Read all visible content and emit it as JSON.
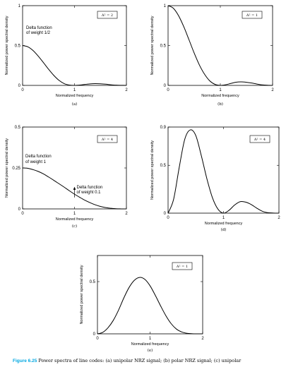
{
  "chart_data": [
    {
      "id": "a",
      "type": "line",
      "panel_label": "(a)",
      "xlabel": "Normalized frequency",
      "ylabel": "Normalized power spectral density",
      "xlim": [
        0,
        2
      ],
      "ylim": [
        0,
        1
      ],
      "xticks": [
        "0",
        "1",
        "2"
      ],
      "yticks": [
        "0",
        "0.5",
        "1"
      ],
      "ytick_values": [
        0,
        0.5,
        1
      ],
      "legend": "A² = 2",
      "annotations": [
        "Delta function",
        "of weight 1/2"
      ],
      "series": [
        {
          "x": [
            0,
            0.1,
            0.2,
            0.3,
            0.4,
            0.5,
            0.6,
            0.7,
            0.8,
            0.9,
            1.0,
            1.1,
            1.2,
            1.3,
            1.4,
            1.5,
            1.6,
            1.7,
            1.8,
            1.9,
            2.0
          ],
          "y": [
            0.5,
            0.484,
            0.438,
            0.368,
            0.287,
            0.203,
            0.126,
            0.064,
            0.023,
            0.005,
            0,
            0.004,
            0.012,
            0.019,
            0.022,
            0.02,
            0.015,
            0.008,
            0.003,
            0.001,
            0
          ]
        }
      ]
    },
    {
      "id": "b",
      "type": "line",
      "panel_label": "(b)",
      "xlabel": "Normalized frequency",
      "ylabel": "Normalized power spectral density",
      "xlim": [
        0,
        2
      ],
      "ylim": [
        0,
        1
      ],
      "xticks": [
        "0",
        "1",
        "2"
      ],
      "yticks": [
        "0",
        "0.5",
        "1"
      ],
      "ytick_values": [
        0,
        0.5,
        1
      ],
      "legend": "A² = 1",
      "series": [
        {
          "x": [
            0,
            0.1,
            0.2,
            0.3,
            0.4,
            0.5,
            0.6,
            0.7,
            0.8,
            0.9,
            1.0,
            1.1,
            1.2,
            1.3,
            1.4,
            1.5,
            1.6,
            1.7,
            1.8,
            1.9,
            2.0
          ],
          "y": [
            1.0,
            0.968,
            0.875,
            0.737,
            0.573,
            0.405,
            0.255,
            0.138,
            0.055,
            0.012,
            0,
            0.008,
            0.024,
            0.04,
            0.044,
            0.039,
            0.03,
            0.017,
            0.007,
            0.002,
            0
          ]
        }
      ]
    },
    {
      "id": "c",
      "type": "line",
      "panel_label": "(c)",
      "xlabel": "Normalized frequency",
      "ylabel": "Normalized power spectral density",
      "xlim": [
        0,
        2
      ],
      "ylim": [
        0,
        0.5
      ],
      "xticks": [
        "0",
        "1",
        "2"
      ],
      "yticks": [
        "0",
        "0.25",
        "0.5"
      ],
      "ytick_values": [
        0,
        0.25,
        0.5
      ],
      "legend": "A² = 4",
      "annotations": [
        "Delta function",
        "of weight 1",
        "Delta function",
        "of weight 0.1"
      ],
      "series": [
        {
          "x": [
            0,
            0.1,
            0.2,
            0.3,
            0.4,
            0.5,
            0.6,
            0.7,
            0.8,
            0.9,
            1.0,
            1.1,
            1.2,
            1.3,
            1.4,
            1.5,
            1.6,
            1.7,
            1.8,
            1.9,
            2.0
          ],
          "y": [
            0.25,
            0.248,
            0.24,
            0.229,
            0.214,
            0.195,
            0.175,
            0.154,
            0.133,
            0.111,
            0.09,
            0.071,
            0.053,
            0.038,
            0.025,
            0.015,
            0.008,
            0.004,
            0.001,
            0.0002,
            0
          ]
        }
      ]
    },
    {
      "id": "d",
      "type": "line",
      "panel_label": "(d)",
      "xlabel": "Normalized frequency",
      "ylabel": "Normalized power spectral density",
      "xlim": [
        0,
        2
      ],
      "ylim": [
        0,
        0.9
      ],
      "xticks": [
        "0",
        "1",
        "2"
      ],
      "yticks": [
        "0",
        "0.5",
        "0.9"
      ],
      "ytick_values": [
        0,
        0.5,
        0.9
      ],
      "legend": "A² = 4",
      "series": [
        {
          "x": [
            0,
            0.1,
            0.2,
            0.3,
            0.4,
            0.5,
            0.6,
            0.7,
            0.8,
            0.9,
            1.0,
            1.1,
            1.2,
            1.3,
            1.4,
            1.5,
            1.6,
            1.7,
            1.8,
            1.9,
            2.0
          ],
          "y": [
            0,
            0.145,
            0.474,
            0.77,
            0.87,
            0.811,
            0.6,
            0.36,
            0.162,
            0.042,
            0,
            0.03,
            0.085,
            0.12,
            0.115,
            0.09,
            0.052,
            0.02,
            0.005,
            0.001,
            0
          ]
        }
      ]
    },
    {
      "id": "e",
      "type": "line",
      "panel_label": "(e)",
      "xlabel": "Normalized frequency",
      "ylabel": "Normalized power spectral density",
      "xlim": [
        0,
        2
      ],
      "ylim": [
        0,
        0.75
      ],
      "xticks": [
        "0",
        "1",
        "2"
      ],
      "yticks": [
        "0",
        "0.5"
      ],
      "ytick_values": [
        0,
        0.5
      ],
      "legend": "A² = 1",
      "series": [
        {
          "x": [
            0,
            0.1,
            0.2,
            0.3,
            0.4,
            0.5,
            0.6,
            0.7,
            0.8,
            0.9,
            1.0,
            1.1,
            1.2,
            1.3,
            1.4,
            1.5,
            1.6,
            1.7,
            1.8,
            1.9,
            2.0
          ],
          "y": [
            0,
            0.014,
            0.058,
            0.128,
            0.226,
            0.342,
            0.443,
            0.512,
            0.54,
            0.522,
            0.46,
            0.368,
            0.268,
            0.174,
            0.098,
            0.046,
            0.018,
            0.005,
            0.001,
            0.0002,
            0
          ]
        }
      ]
    }
  ],
  "caption": {
    "figure_label": "Figure 6.25",
    "text": "Power spectra of line codes: (a) unipolar NRZ signal; (b) polar NRZ signal; (c) unipolar"
  }
}
